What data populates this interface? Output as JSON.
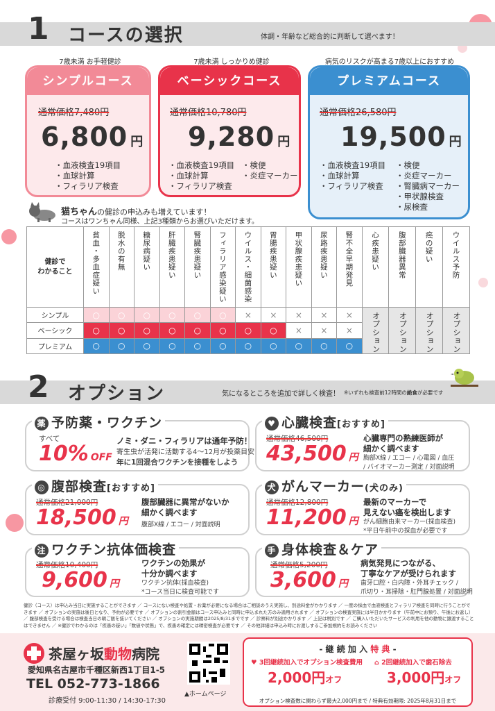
{
  "section1": {
    "num": "1",
    "title": "コースの選択",
    "sub": "体調・年齢など総合的に判断して選べます！"
  },
  "courses": [
    {
      "tagline": "7歳未満 お手軽健診",
      "name": "シンプルコース",
      "regular": "通常価格7,480円",
      "price": "6,800",
      "yen": "円",
      "items": [
        "・血液検査19項目",
        "・血球計算",
        "・フィラリア検査"
      ],
      "items2": [],
      "color": "#f28a97",
      "bg": "#fbe5e7"
    },
    {
      "tagline": "7歳未満 しっかりめ健診",
      "name": "ベーシックコース",
      "regular": "通常価格10,780円",
      "price": "9,280",
      "yen": "円",
      "items": [
        "・血液検査19項目",
        "・血球計算",
        "・フィラリア検査"
      ],
      "items2": [
        "・検便",
        "・炎症マーカー"
      ],
      "color": "#e8334a",
      "bg": "#fde8ea"
    },
    {
      "tagline": "病気のリスクが高まる7歳以上におすすめ",
      "name": "プレミアムコース",
      "regular": "通常価格26,580円",
      "price": "19,500",
      "yen": "円",
      "items": [
        "・血液検査19項目",
        "・血球計算",
        "・フィラリア検査"
      ],
      "items2": [
        "・検便",
        "・炎症マーカー",
        "・腎臓病マーカー",
        "・甲状腺検査",
        "・尿検査"
      ],
      "color": "#3b8fd0",
      "bg": "#e3eff9"
    }
  ],
  "cat": {
    "title": "猫ちゃん",
    "title_rest": "の健診の申込みも増えています！",
    "sub": "コースはワンちゃん同様、上記3種類からお選びいただけます。"
  },
  "matrix": {
    "corner": "健診で\nわかること",
    "cols": [
      "貧血・多血症疑い",
      "脱水の有無",
      "糖尿病疑い",
      "肝臓疾患疑い",
      "腎臓疾患疑い",
      "フィラリア感染疑い",
      "ウイルス・細菌感染",
      "胃腸疾患疑い",
      "甲状腺疾患疑い",
      "尿路疾患疑い",
      "腎不全早期発見",
      "心疾患疑い",
      "腹部臓器異常",
      "癌の疑い",
      "ウイルス予防"
    ],
    "rows": [
      {
        "name": "シンプル",
        "cells": [
          "○",
          "○",
          "○",
          "○",
          "○",
          "○",
          "×",
          "×",
          "×",
          "×",
          "×"
        ]
      },
      {
        "name": "ベーシック",
        "cells": [
          "○",
          "○",
          "○",
          "○",
          "○",
          "○",
          "○",
          "○",
          "×",
          "×",
          "×"
        ]
      },
      {
        "name": "プレミアム",
        "cells": [
          "○",
          "○",
          "○",
          "○",
          "○",
          "○",
          "○",
          "○",
          "○",
          "○",
          "○"
        ]
      }
    ],
    "option_label": "オプション"
  },
  "section2": {
    "num": "2",
    "title": "オプション",
    "sub": "気になるところを追加で詳しく検査！",
    "note_pre": "※いずれも検査前12時間の",
    "note_bold": "絶食",
    "note_post": "が必要です"
  },
  "options": [
    {
      "icon": "薬",
      "title": "予防薬・ワクチン",
      "tag": "",
      "regular": "すべて",
      "price": "10%",
      "yen": "OFF",
      "desc": [
        "ノミ・ダニ・フィラリアは通年予防！"
      ],
      "det": [
        "寄生虫が活発に活動する4〜12月が投薬目安",
        "年に1回混合ワクチンを接種をしよう"
      ]
    },
    {
      "icon": "♥",
      "title": "心臓検査",
      "tag": "[おすすめ]",
      "regular": "通常価格46,500円",
      "price": "43,500",
      "yen": "円",
      "desc": [
        "心臓専門の熟練医師が",
        "細かく調べます"
      ],
      "det": [
        "胸部X線 / エコー / 心電図 / 血圧",
        "/ バイオマーカー測定 / 対面説明"
      ]
    },
    {
      "icon": "◎",
      "title": "腹部検査",
      "tag": "[おすすめ]",
      "regular": "通常価格21,000円",
      "price": "18,500",
      "yen": "円",
      "desc": [
        "腹部臓器に異常がないか",
        "細かく調べます"
      ],
      "det": [
        "腹部X線 / エコー / 対面説明"
      ]
    },
    {
      "icon": "犬",
      "title": "がんマーカー",
      "tag": "(犬のみ)",
      "regular": "通常価格12,800円",
      "price": "11,200",
      "yen": "円",
      "desc": [
        "最新のマーカーで",
        "見えない癌を検出します"
      ],
      "det": [
        "がん細胞由来マーカー(採血検査)",
        "*平日午前中の採血が必要です"
      ]
    },
    {
      "icon": "注",
      "title": "ワクチン抗体価検査",
      "tag": "",
      "regular": "通常価格10,400円",
      "price": "9,600",
      "yen": "円",
      "desc": [
        "ワクチンの効果が",
        "十分か調べます"
      ],
      "det": [
        "ワクチン抗体(採血検査)",
        "*コース当日に検査可能です"
      ]
    },
    {
      "icon": "手",
      "title": "身体検査＆ケア",
      "tag": "",
      "regular": "通常価格5,200円",
      "price": "3,600",
      "yen": "円",
      "desc": [
        "病気発見につながる、",
        "丁寧なケアが受けられます"
      ],
      "det": [
        "歯牙口腔・白内障・外耳チェック /",
        "爪切り・耳掃除・肛門腺処置 / 対面説明"
      ]
    }
  ],
  "notes": "健診（コース）は申込み当日に実施することができます ／ コースにない検査や処置・お薬が必要になる場合はご相談のうえ実施し、別途料金がかかります ／ 一度の採血で血液検査とフィラリア検査を同時に行うことができます ／ オプションの実施は後日となり、予約が必要です ／ オプションの割引金額はコース申込みと同時に申込まれた方のみ適用されます ／ オプションの検査実施には半日かかります（午前中にお預り、午後にお返し） ／ 腹部検査を受ける場合は検査当日の朝ご飯を抜いてください ／ オプションの実施期間は2025/8/31までです ／ 診察料が別途かかります ／ 上記は税別です ／ ご購入いただいたサービスの利用を他の動物に譲渡することはできません ／ ※健診でわかるのは「疾患の疑い」「数値や状態」で、疾患の確定には精密検査が必要です ／ その他詳細は申込み時にお渡しするご参加規約をお読みください",
  "hospital": {
    "name_a": "茶屋ヶ坂",
    "name_b": "動物",
    "name_c": "病院",
    "address": "愛知県名古屋市千種区新西1丁目1-5",
    "tel_label": "TEL",
    "tel": "052-773-1866",
    "hours": "診療受付 9:00-11:30 / 14:30-17:30",
    "qr_label": "▲ホームページ"
  },
  "perk": {
    "title_pre": "- 継 続 加 入 ",
    "title_em": "特 典",
    "title_post": " -",
    "a_line": "3回継続加入でオプション検査費用",
    "a_price": "2,000円",
    "a_suffix": "オフ",
    "b_line": "2回継続加入で歯石除去",
    "b_price": "3,000円",
    "b_suffix": "オフ",
    "foot": "オプション検査数に関わらず最大2,000円まで / 特典有効期限: 2025年8月31日まで"
  },
  "colors": {
    "red": "#e8334a",
    "pink": "#f28a97",
    "blue": "#3b8fd0"
  }
}
